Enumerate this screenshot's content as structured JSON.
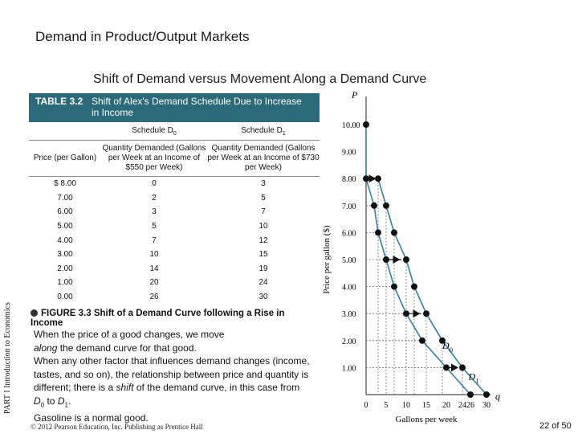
{
  "slide": {
    "title": "Demand in Product/Output Markets",
    "subtitle": "Shift of Demand versus Movement Along a Demand Curve",
    "side_label": "PART I Introduction to Economics",
    "copyright": "© 2012 Pearson Education, Inc. Publishing as Prentice Hall",
    "page_num": "22 of 50"
  },
  "table": {
    "number": "TABLE 3.2",
    "title": "Shift of Alex's Demand Schedule Due to Increase in Income",
    "schedule0": "Schedule D",
    "schedule0_sub": "0",
    "schedule1": "Schedule D",
    "schedule1_sub": "1",
    "col_price": "Price (per Gallon)",
    "col_q0": "Quantity Demanded (Gallons per Week at an Income of $550 per Week)",
    "col_q1": "Quantity Demanded (Gallons per Week at an Income of $730 per Week)",
    "rows": [
      {
        "price": "$ 8.00",
        "q0": "0",
        "q1": "3"
      },
      {
        "price": "7.00",
        "q0": "2",
        "q1": "5"
      },
      {
        "price": "6.00",
        "q0": "3",
        "q1": "7"
      },
      {
        "price": "5.00",
        "q0": "5",
        "q1": "10"
      },
      {
        "price": "4.00",
        "q0": "7",
        "q1": "12"
      },
      {
        "price": "3.00",
        "q0": "10",
        "q1": "15"
      },
      {
        "price": "2.00",
        "q0": "14",
        "q1": "19"
      },
      {
        "price": "1.00",
        "q0": "20",
        "q1": "24"
      },
      {
        "price": "0.00",
        "q0": "26",
        "q1": "30"
      }
    ]
  },
  "caption": {
    "title": "FIGURE 3.3  Shift of a Demand  Curve following a Rise in Income",
    "line1a": "When the price of a good changes, we move",
    "line2_italic": "along",
    "line2b": "the demand curve for that good.",
    "line3": "When any other factor that influences demand changes (income, tastes, and so on), the relationship between price and quantity is different; there is a",
    "shift_word": "shift",
    "line3b": "of the demand curve, in this case from",
    "d0": "D",
    "d0_sub": "0",
    "to": "to",
    "d1": "D",
    "d1_sub": "1",
    "line4": "Gasoline is a normal good."
  },
  "chart_data": {
    "type": "line",
    "ylabel": "Price per gallon ($)",
    "xlabel": "Gallons per week",
    "y_axis_symbol": "P",
    "x_axis_symbol": "q",
    "y_ticks": [
      "10.00",
      "9.00",
      "8.00",
      "7.00",
      "6.00",
      "5.00",
      "4.00",
      "3.00",
      "2.00",
      "1.00"
    ],
    "x_ticks": [
      "0",
      "5",
      "10",
      "15",
      "20",
      "24",
      "26",
      "30"
    ],
    "ylim": [
      0,
      10.5
    ],
    "xlim": [
      0,
      31
    ],
    "series": [
      {
        "name": "D0",
        "label": "D",
        "label_sub": "0",
        "points": [
          [
            0,
            10
          ],
          [
            0,
            8
          ],
          [
            2,
            7
          ],
          [
            3,
            6
          ],
          [
            5,
            5
          ],
          [
            7,
            4
          ],
          [
            10,
            3
          ],
          [
            14,
            2
          ],
          [
            20,
            1
          ],
          [
            26,
            0
          ]
        ],
        "color": "#2f7fa8"
      },
      {
        "name": "D1",
        "label": "D",
        "label_sub": "1",
        "points": [
          [
            3,
            8
          ],
          [
            5,
            7
          ],
          [
            7,
            6
          ],
          [
            10,
            5
          ],
          [
            12,
            4
          ],
          [
            15,
            3
          ],
          [
            19,
            2
          ],
          [
            24,
            1
          ],
          [
            30,
            0
          ]
        ],
        "color": "#2f7fa8"
      }
    ],
    "arrows": [
      {
        "from": [
          0,
          8
        ],
        "to": [
          3,
          8
        ]
      },
      {
        "from": [
          5,
          5
        ],
        "to": [
          10,
          5
        ]
      },
      {
        "from": [
          10,
          3
        ],
        "to": [
          15,
          3
        ]
      },
      {
        "from": [
          20,
          1
        ],
        "to": [
          24,
          1
        ]
      }
    ]
  }
}
